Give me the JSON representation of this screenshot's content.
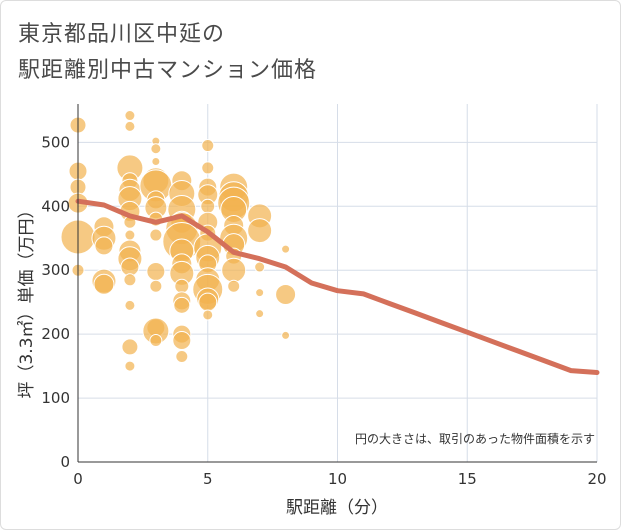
{
  "title_line1": "東京都品川区中延の",
  "title_line2": "駅距離別中古マンション価格",
  "chart_data": {
    "type": "scatter",
    "xlabel": "駅距離（分）",
    "ylabel": "坪（3.3㎡）単価（万円）",
    "xlim": [
      0,
      20
    ],
    "ylim": [
      0,
      560
    ],
    "x_ticks": [
      "0",
      "5",
      "10",
      "15",
      "20"
    ],
    "y_ticks": [
      "0",
      "100",
      "200",
      "300",
      "400",
      "500"
    ],
    "note": "円の大きさは、取引のあった物件面積を示す",
    "bubble_color": "#f2b24f",
    "line_color": "#d4705a",
    "trend_line": {
      "x": [
        0,
        1,
        2,
        3,
        4,
        5,
        6,
        7,
        8,
        9,
        10,
        11,
        12,
        13,
        14,
        15,
        16,
        17,
        18,
        19,
        20
      ],
      "y": [
        408,
        402,
        385,
        375,
        385,
        360,
        328,
        318,
        305,
        280,
        268,
        263,
        248,
        233,
        218,
        203,
        188,
        173,
        158,
        143,
        140
      ]
    },
    "bubbles": [
      {
        "x": 0,
        "y": 527,
        "r": 8
      },
      {
        "x": 0,
        "y": 455,
        "r": 9
      },
      {
        "x": 0,
        "y": 430,
        "r": 8
      },
      {
        "x": 0,
        "y": 405,
        "r": 10
      },
      {
        "x": 0,
        "y": 352,
        "r": 17
      },
      {
        "x": 0,
        "y": 300,
        "r": 6
      },
      {
        "x": 1,
        "y": 368,
        "r": 10
      },
      {
        "x": 1,
        "y": 350,
        "r": 12
      },
      {
        "x": 1,
        "y": 338,
        "r": 9
      },
      {
        "x": 1,
        "y": 283,
        "r": 12
      },
      {
        "x": 1,
        "y": 278,
        "r": 10
      },
      {
        "x": 2,
        "y": 542,
        "r": 5
      },
      {
        "x": 2,
        "y": 525,
        "r": 5
      },
      {
        "x": 2,
        "y": 460,
        "r": 13
      },
      {
        "x": 2,
        "y": 440,
        "r": 8
      },
      {
        "x": 2,
        "y": 425,
        "r": 11
      },
      {
        "x": 2,
        "y": 412,
        "r": 12
      },
      {
        "x": 2,
        "y": 392,
        "r": 10
      },
      {
        "x": 2,
        "y": 375,
        "r": 6
      },
      {
        "x": 2,
        "y": 355,
        "r": 5
      },
      {
        "x": 2,
        "y": 330,
        "r": 11
      },
      {
        "x": 2,
        "y": 318,
        "r": 12
      },
      {
        "x": 2,
        "y": 305,
        "r": 9
      },
      {
        "x": 2,
        "y": 285,
        "r": 6
      },
      {
        "x": 2,
        "y": 245,
        "r": 5
      },
      {
        "x": 2,
        "y": 180,
        "r": 8
      },
      {
        "x": 2,
        "y": 150,
        "r": 5
      },
      {
        "x": 3,
        "y": 502,
        "r": 4
      },
      {
        "x": 3,
        "y": 490,
        "r": 5
      },
      {
        "x": 3,
        "y": 470,
        "r": 4
      },
      {
        "x": 3,
        "y": 440,
        "r": 13
      },
      {
        "x": 3,
        "y": 432,
        "r": 16
      },
      {
        "x": 3,
        "y": 410,
        "r": 9
      },
      {
        "x": 3,
        "y": 398,
        "r": 11
      },
      {
        "x": 3,
        "y": 380,
        "r": 7
      },
      {
        "x": 3,
        "y": 355,
        "r": 6
      },
      {
        "x": 3,
        "y": 298,
        "r": 9
      },
      {
        "x": 3,
        "y": 275,
        "r": 6
      },
      {
        "x": 3,
        "y": 210,
        "r": 9
      },
      {
        "x": 3,
        "y": 205,
        "r": 13
      },
      {
        "x": 3,
        "y": 190,
        "r": 6
      },
      {
        "x": 4,
        "y": 440,
        "r": 10
      },
      {
        "x": 4,
        "y": 420,
        "r": 13
      },
      {
        "x": 4,
        "y": 395,
        "r": 14
      },
      {
        "x": 4,
        "y": 375,
        "r": 11
      },
      {
        "x": 4,
        "y": 365,
        "r": 16
      },
      {
        "x": 4,
        "y": 345,
        "r": 19
      },
      {
        "x": 4,
        "y": 330,
        "r": 12
      },
      {
        "x": 4,
        "y": 310,
        "r": 10
      },
      {
        "x": 4,
        "y": 295,
        "r": 12
      },
      {
        "x": 4,
        "y": 275,
        "r": 7
      },
      {
        "x": 4,
        "y": 252,
        "r": 9
      },
      {
        "x": 4,
        "y": 245,
        "r": 8
      },
      {
        "x": 4,
        "y": 200,
        "r": 9
      },
      {
        "x": 4,
        "y": 190,
        "r": 9
      },
      {
        "x": 4,
        "y": 165,
        "r": 6
      },
      {
        "x": 5,
        "y": 495,
        "r": 6
      },
      {
        "x": 5,
        "y": 460,
        "r": 6
      },
      {
        "x": 5,
        "y": 430,
        "r": 9
      },
      {
        "x": 5,
        "y": 418,
        "r": 10
      },
      {
        "x": 5,
        "y": 400,
        "r": 7
      },
      {
        "x": 5,
        "y": 375,
        "r": 10
      },
      {
        "x": 5,
        "y": 358,
        "r": 8
      },
      {
        "x": 5,
        "y": 335,
        "r": 14
      },
      {
        "x": 5,
        "y": 320,
        "r": 12
      },
      {
        "x": 5,
        "y": 310,
        "r": 9
      },
      {
        "x": 5,
        "y": 285,
        "r": 12
      },
      {
        "x": 5,
        "y": 270,
        "r": 15
      },
      {
        "x": 5,
        "y": 255,
        "r": 11
      },
      {
        "x": 5,
        "y": 250,
        "r": 9
      },
      {
        "x": 5,
        "y": 230,
        "r": 5
      },
      {
        "x": 6,
        "y": 430,
        "r": 14
      },
      {
        "x": 6,
        "y": 415,
        "r": 15
      },
      {
        "x": 6,
        "y": 405,
        "r": 16
      },
      {
        "x": 6,
        "y": 395,
        "r": 13
      },
      {
        "x": 6,
        "y": 370,
        "r": 10
      },
      {
        "x": 6,
        "y": 350,
        "r": 14
      },
      {
        "x": 6,
        "y": 340,
        "r": 11
      },
      {
        "x": 6,
        "y": 322,
        "r": 8
      },
      {
        "x": 6,
        "y": 300,
        "r": 12
      },
      {
        "x": 6,
        "y": 275,
        "r": 6
      },
      {
        "x": 7,
        "y": 385,
        "r": 12
      },
      {
        "x": 7,
        "y": 362,
        "r": 12
      },
      {
        "x": 7,
        "y": 305,
        "r": 5
      },
      {
        "x": 7,
        "y": 265,
        "r": 4
      },
      {
        "x": 7,
        "y": 232,
        "r": 4
      },
      {
        "x": 8,
        "y": 333,
        "r": 4
      },
      {
        "x": 8,
        "y": 262,
        "r": 10
      },
      {
        "x": 8,
        "y": 198,
        "r": 4
      }
    ]
  }
}
